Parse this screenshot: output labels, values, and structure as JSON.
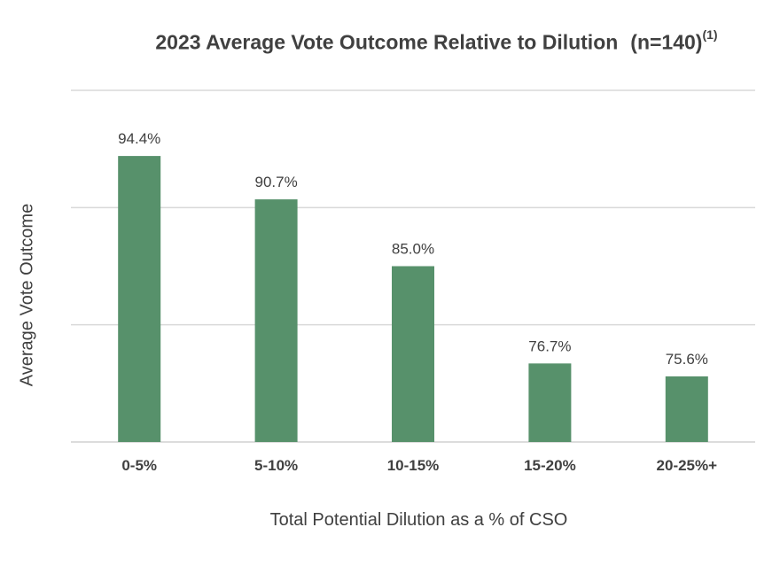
{
  "chart_data": {
    "type": "bar",
    "title": "2023 Average Vote Outcome Relative to Dilution",
    "title_note": "(n=140)",
    "title_footnote": "(1)",
    "xlabel": "Total Potential Dilution as a % of CSO",
    "ylabel": "Average Vote Outcome",
    "categories": [
      "0-5%",
      "5-10%",
      "10-15%",
      "15-20%",
      "20-25%+"
    ],
    "values": [
      94.4,
      90.7,
      85.0,
      76.7,
      75.6
    ],
    "value_labels": [
      "94.4%",
      "90.7%",
      "85.0%",
      "76.7%",
      "75.6%"
    ],
    "ylim": [
      70,
      100
    ],
    "grid": true,
    "bar_color": "#57916B"
  }
}
